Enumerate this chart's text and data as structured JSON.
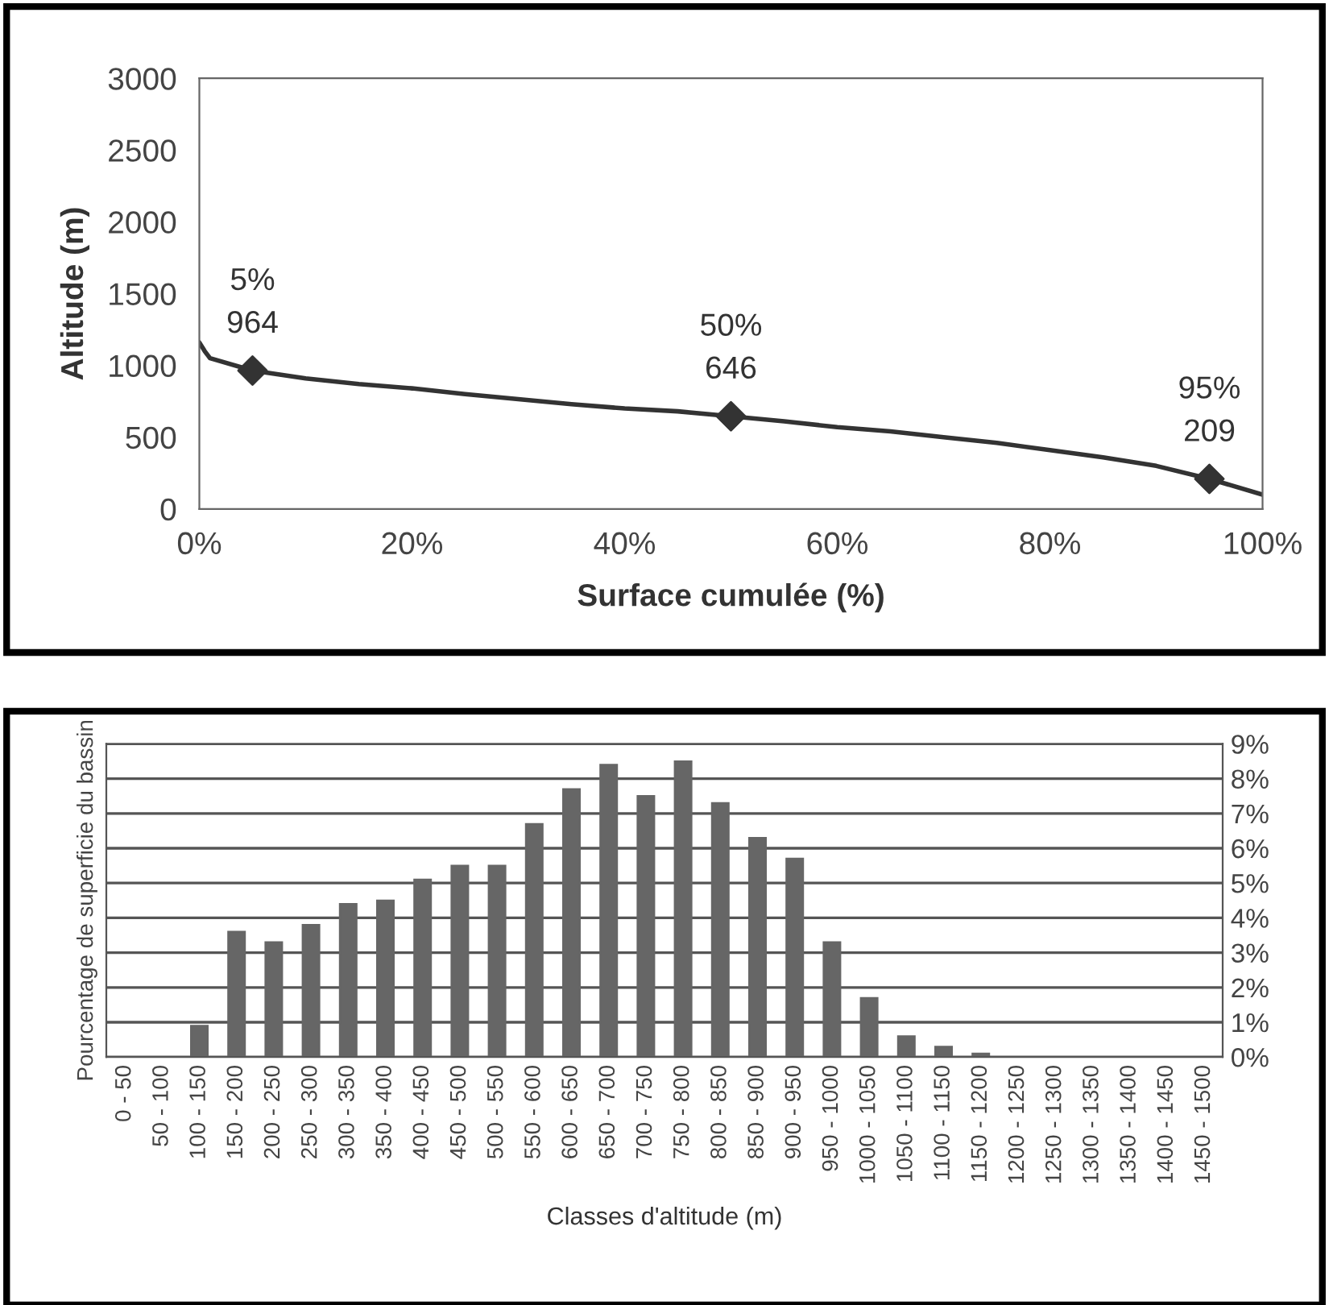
{
  "chart_data": [
    {
      "type": "line",
      "xlabel": "Surface cumulée (%)",
      "ylabel": "Altitude (m)",
      "xlim": [
        0,
        100
      ],
      "xticks": [
        {
          "value": 0,
          "label": "0%"
        },
        {
          "value": 20,
          "label": "20%"
        },
        {
          "value": 40,
          "label": "40%"
        },
        {
          "value": 60,
          "label": "60%"
        },
        {
          "value": 80,
          "label": "80%"
        },
        {
          "value": 100,
          "label": "100%"
        }
      ],
      "ylim": [
        0,
        3000
      ],
      "yticks": [
        0,
        500,
        1000,
        1500,
        2000,
        2500,
        3000
      ],
      "grid": false,
      "legend": false,
      "series": [
        {
          "type": "line",
          "color": "#333333",
          "marker": "none",
          "line_style": "solid",
          "x": [
            0,
            0.5,
            1,
            5,
            10,
            15,
            20,
            25,
            30,
            35,
            40,
            45,
            50,
            55,
            60,
            65,
            70,
            75,
            80,
            85,
            90,
            95,
            100
          ],
          "values": [
            1160,
            1100,
            1050,
            964,
            910,
            870,
            840,
            800,
            765,
            730,
            700,
            680,
            646,
            610,
            570,
            540,
            500,
            460,
            410,
            360,
            300,
            209,
            100
          ]
        },
        {
          "type": "scatter",
          "color": "#333333",
          "marker": "diamond",
          "x": [
            5,
            50,
            95
          ],
          "values": [
            964,
            646,
            209
          ]
        }
      ],
      "annotations": [
        {
          "text": "5%\n964",
          "x": 5,
          "y": 964
        },
        {
          "text": "50%\n646",
          "x": 50,
          "y": 646
        },
        {
          "text": "95%\n209",
          "x": 95,
          "y": 209
        }
      ]
    },
    {
      "type": "bar",
      "xlabel": "Classes d'altitude (m)",
      "ylabel": "Pourcentage de superficie du bassin",
      "categories": [
        "0 - 50",
        "50 - 100",
        "100 - 150",
        "150 - 200",
        "200 - 250",
        "250 - 300",
        "300 - 350",
        "350 - 400",
        "400 - 450",
        "450 - 500",
        "500 - 550",
        "550 - 600",
        "600 - 650",
        "650 - 700",
        "700 - 750",
        "750 - 800",
        "800 - 850",
        "850 - 900",
        "900 - 950",
        "950 - 1000",
        "1000 - 1050",
        "1050 - 1100",
        "1100 - 1150",
        "1150 - 1200",
        "1200 - 1250",
        "1250 - 1300",
        "1300 - 1350",
        "1350 - 1400",
        "1400 - 1450",
        "1450 - 1500"
      ],
      "values": [
        0,
        0,
        0.9,
        3.6,
        3.3,
        3.8,
        4.4,
        4.5,
        5.1,
        5.5,
        5.5,
        6.7,
        7.7,
        8.4,
        7.5,
        8.5,
        7.3,
        6.3,
        5.7,
        3.3,
        1.7,
        0.6,
        0.3,
        0.1,
        0,
        0,
        0,
        0,
        0,
        0
      ],
      "color": "#666666",
      "ylim": [
        0,
        9
      ],
      "yticks": [
        {
          "value": 0,
          "label": "0%"
        },
        {
          "value": 1,
          "label": "1%"
        },
        {
          "value": 2,
          "label": "2%"
        },
        {
          "value": 3,
          "label": "3%"
        },
        {
          "value": 4,
          "label": "4%"
        },
        {
          "value": 5,
          "label": "5%"
        },
        {
          "value": 6,
          "label": "6%"
        },
        {
          "value": 7,
          "label": "7%"
        },
        {
          "value": 8,
          "label": "8%"
        },
        {
          "value": 9,
          "label": "9%"
        }
      ],
      "grid": "y",
      "legend": false
    }
  ]
}
